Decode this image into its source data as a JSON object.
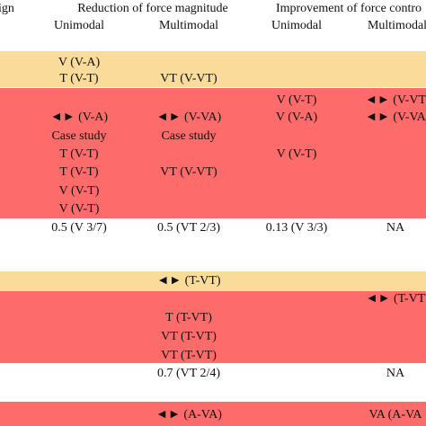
{
  "header": {
    "first_column_fragment": "ign",
    "group_1": "Reduction of force magnitude",
    "group_2": "Improvement of force contro",
    "subheaders": [
      "Unimodal",
      "Multimodal",
      "Unimodal",
      "Multimodal"
    ]
  },
  "table": {
    "rows": [
      [
        "V (V-A)",
        null,
        null,
        null
      ],
      [
        "T (V-T)",
        "VT (V-VT)",
        null,
        null
      ],
      [
        null,
        null,
        "V (V-T)",
        "◄► (V-VT"
      ],
      [
        "◄► (V-A)",
        "◄► (V-VA)",
        "V (V-A)",
        "◄► (V-VA"
      ],
      [
        "Case study",
        "Case study",
        null,
        null
      ],
      [
        "T (V-T)",
        null,
        "V (V-T)",
        null
      ],
      [
        "T (V-T)",
        "VT (V-VT)",
        null,
        null
      ],
      [
        "V (V-T)",
        null,
        null,
        null
      ],
      [
        "V (V-T)",
        null,
        null,
        null
      ],
      [
        "0.5 (V 3/7)",
        "0.5 (VT 2/3)",
        "0.13 (V 3/3)",
        "NA"
      ],
      [
        null,
        "◄► (T-VT)",
        null,
        null
      ],
      [
        null,
        null,
        null,
        "◄► (T-VT"
      ],
      [
        null,
        "T (T-VT)",
        null,
        null
      ],
      [
        null,
        "VT (T-VT)",
        null,
        null
      ],
      [
        null,
        "VT (T-VT)",
        null,
        null
      ],
      [
        null,
        "0.7 (VT 2/4)",
        null,
        "NA"
      ],
      [
        null,
        "◄► (A-VA)",
        null,
        "VA (A-VA"
      ]
    ]
  }
}
